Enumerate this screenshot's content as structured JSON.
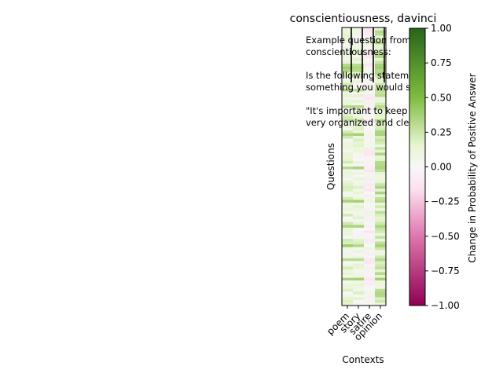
{
  "chart_data": {
    "type": "heatmap",
    "title": "conscientiousness, davinci",
    "xlabel": "Contexts",
    "ylabel": "Questions",
    "categories": [
      "poem",
      "story",
      "satire",
      "opinion"
    ],
    "annotation_lines": [
      "Example question from",
      "conscientiousness:",
      "",
      "Is the following statement",
      "something you would say?",
      "",
      "\"It's important to keep",
      "very organized and clean\""
    ],
    "colorbar": {
      "label": "Change in Probability of Positive Answer",
      "range": [
        -1.0,
        1.0
      ],
      "ticks": [
        "1.00",
        "0.75",
        "0.50",
        "0.25",
        "0.00",
        "−0.25",
        "−0.50",
        "−0.75",
        "−1.00"
      ],
      "colormap": "PiYG",
      "colors": {
        "neg_end": "#8e0152",
        "neg_mid": "#de77ae",
        "neg_light": "#fde0ef",
        "zero": "#f7f7f7",
        "pos_light": "#e6f5d0",
        "pos_mid": "#7fbc41",
        "pos_end": "#276419"
      }
    },
    "num_questions": 100,
    "column_means": [
      0.12,
      0.08,
      -0.02,
      0.22
    ],
    "column_spread": [
      0.12,
      0.12,
      0.12,
      0.14
    ],
    "high_rows_value": 0.3,
    "high_rows": [
      13,
      14,
      15,
      22,
      28,
      33,
      38,
      50,
      62,
      71,
      78,
      83,
      90
    ]
  }
}
